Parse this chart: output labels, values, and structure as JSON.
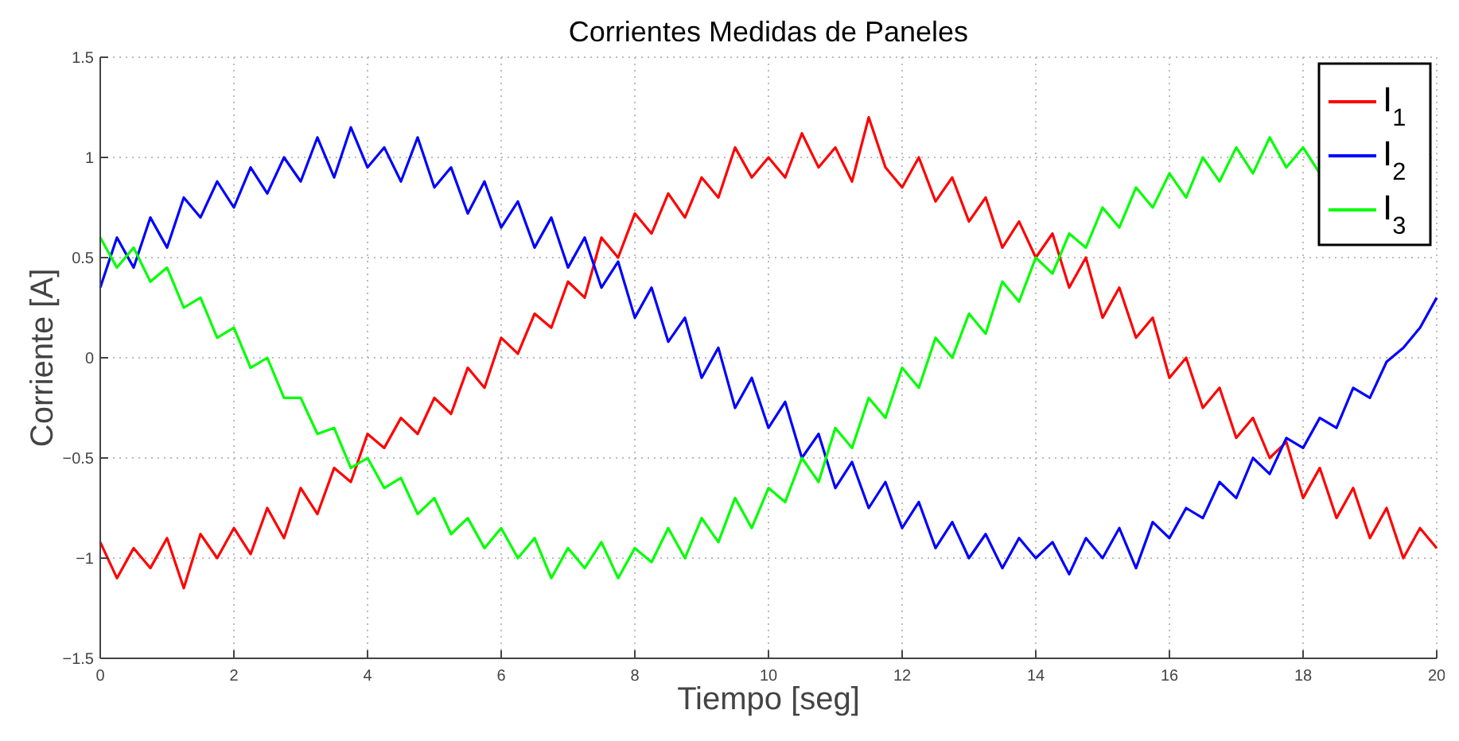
{
  "chart_data": {
    "type": "line",
    "title": "Corrientes Medidas de Paneles",
    "xlabel": "Tiempo [seg]",
    "ylabel": "Corriente [A]",
    "x": [
      0,
      0.25,
      0.5,
      0.75,
      1,
      1.25,
      1.5,
      1.75,
      2,
      2.25,
      2.5,
      2.75,
      3,
      3.25,
      3.5,
      3.75,
      4,
      4.25,
      4.5,
      4.75,
      5,
      5.25,
      5.5,
      5.75,
      6,
      6.25,
      6.5,
      6.75,
      7,
      7.25,
      7.5,
      7.75,
      8,
      8.25,
      8.5,
      8.75,
      9,
      9.25,
      9.5,
      9.75,
      10,
      10.25,
      10.5,
      10.75,
      11,
      11.25,
      11.5,
      11.75,
      12,
      12.25,
      12.5,
      12.75,
      13,
      13.25,
      13.5,
      13.75,
      14,
      14.25,
      14.5,
      14.75,
      15,
      15.25,
      15.5,
      15.75,
      16,
      16.25,
      16.5,
      16.75,
      17,
      17.25,
      17.5,
      17.75,
      18,
      18.25,
      18.5,
      18.75,
      19,
      19.25,
      19.5,
      19.75,
      20
    ],
    "series": [
      {
        "name": "I$_{1}$",
        "color": "#ff0000",
        "values": [
          -0.92,
          -1.1,
          -0.95,
          -1.05,
          -0.9,
          -1.15,
          -0.88,
          -1.0,
          -0.85,
          -0.98,
          -0.75,
          -0.9,
          -0.65,
          -0.78,
          -0.55,
          -0.62,
          -0.38,
          -0.45,
          -0.3,
          -0.38,
          -0.2,
          -0.28,
          -0.05,
          -0.15,
          0.1,
          0.02,
          0.22,
          0.15,
          0.38,
          0.3,
          0.6,
          0.5,
          0.72,
          0.62,
          0.82,
          0.7,
          0.9,
          0.8,
          1.05,
          0.9,
          1.0,
          0.9,
          1.12,
          0.95,
          1.05,
          0.88,
          1.2,
          0.95,
          0.85,
          1.0,
          0.78,
          0.9,
          0.68,
          0.8,
          0.55,
          0.68,
          0.5,
          0.62,
          0.35,
          0.5,
          0.2,
          0.35,
          0.1,
          0.2,
          -0.1,
          0.0,
          -0.25,
          -0.15,
          -0.4,
          -0.3,
          -0.5,
          -0.42,
          -0.7,
          -0.55,
          -0.8,
          -0.65,
          -0.9,
          -0.75,
          -1.0,
          -0.85,
          -0.95
        ]
      },
      {
        "name": "I$_{2}$",
        "color": "#0000ff",
        "values": [
          0.35,
          0.6,
          0.45,
          0.7,
          0.55,
          0.8,
          0.7,
          0.88,
          0.75,
          0.95,
          0.82,
          1.0,
          0.88,
          1.1,
          0.9,
          1.15,
          0.95,
          1.05,
          0.88,
          1.1,
          0.85,
          0.95,
          0.72,
          0.88,
          0.65,
          0.78,
          0.55,
          0.7,
          0.45,
          0.6,
          0.35,
          0.48,
          0.2,
          0.35,
          0.08,
          0.2,
          -0.1,
          0.05,
          -0.25,
          -0.1,
          -0.35,
          -0.22,
          -0.5,
          -0.38,
          -0.65,
          -0.52,
          -0.75,
          -0.62,
          -0.85,
          -0.72,
          -0.95,
          -0.82,
          -1.0,
          -0.88,
          -1.05,
          -0.9,
          -1.0,
          -0.92,
          -1.08,
          -0.9,
          -1.0,
          -0.85,
          -1.05,
          -0.82,
          -0.9,
          -0.75,
          -0.8,
          -0.62,
          -0.7,
          -0.5,
          -0.58,
          -0.4,
          -0.45,
          -0.3,
          -0.35,
          -0.15,
          -0.2,
          -0.02,
          0.05,
          0.15,
          0.3
        ]
      },
      {
        "name": "I$_{3}$",
        "color": "#00ff00",
        "values": [
          0.6,
          0.45,
          0.55,
          0.38,
          0.45,
          0.25,
          0.3,
          0.1,
          0.15,
          -0.05,
          0.0,
          -0.2,
          -0.2,
          -0.38,
          -0.35,
          -0.55,
          -0.5,
          -0.65,
          -0.6,
          -0.78,
          -0.7,
          -0.88,
          -0.8,
          -0.95,
          -0.85,
          -1.0,
          -0.9,
          -1.1,
          -0.95,
          -1.05,
          -0.92,
          -1.1,
          -0.95,
          -1.02,
          -0.85,
          -1.0,
          -0.8,
          -0.92,
          -0.7,
          -0.85,
          -0.65,
          -0.72,
          -0.5,
          -0.62,
          -0.35,
          -0.45,
          -0.2,
          -0.3,
          -0.05,
          -0.15,
          0.1,
          0.0,
          0.22,
          0.12,
          0.38,
          0.28,
          0.5,
          0.42,
          0.62,
          0.55,
          0.75,
          0.65,
          0.85,
          0.75,
          0.92,
          0.8,
          1.0,
          0.88,
          1.05,
          0.92,
          1.1,
          0.95,
          1.05,
          0.92,
          null,
          null,
          null,
          null,
          null,
          null,
          null
        ]
      }
    ],
    "xlim": [
      0,
      20
    ],
    "xticks": [
      0,
      2,
      4,
      6,
      8,
      10,
      12,
      14,
      16,
      18,
      20
    ],
    "ylim": [
      -1.5,
      1.5
    ],
    "yticks": [
      {
        "value": -1.5,
        "label": "−1.5"
      },
      {
        "value": -1,
        "label": "−1"
      },
      {
        "value": -0.5,
        "label": "−0.5"
      },
      0,
      0.5,
      1,
      1.5
    ],
    "grid": true,
    "legend": "top right",
    "marker": "none",
    "line_style": "solid"
  }
}
